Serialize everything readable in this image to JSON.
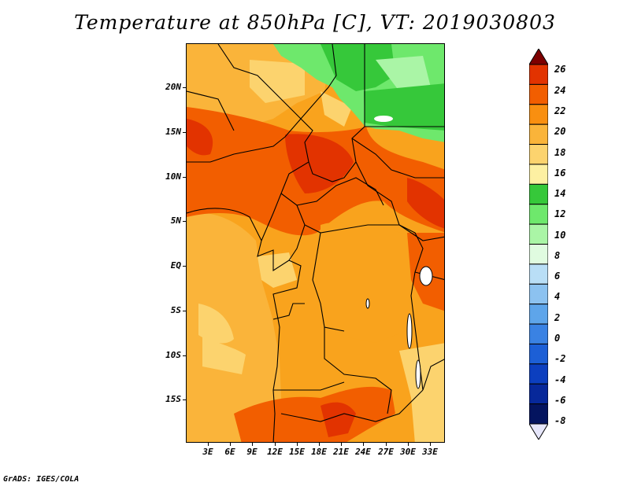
{
  "title": "Temperature at 850hPa [C], VT: 2019030803",
  "credit": "GrADS: IGES/COLA",
  "map": {
    "lat_labels": [
      "20N",
      "15N",
      "10N",
      "5N",
      "EQ",
      "5S",
      "10S",
      "15S"
    ],
    "lon_labels": [
      "3E",
      "6E",
      "9E",
      "12E",
      "15E",
      "18E",
      "21E",
      "24E",
      "27E",
      "30E",
      "33E"
    ]
  },
  "colorbar": {
    "labels": [
      "26",
      "24",
      "22",
      "20",
      "18",
      "16",
      "14",
      "12",
      "10",
      "8",
      "6",
      "4",
      "2",
      "0",
      "-2",
      "-4",
      "-6",
      "-8"
    ],
    "colors": [
      "#7d0000",
      "#e23300",
      "#f25e00",
      "#f98f10",
      "#fab43a",
      "#fcd36e",
      "#fdf0a2",
      "#36c83a",
      "#6ee86c",
      "#aaf5a6",
      "#e0fbe0",
      "#b9def6",
      "#8cc2f0",
      "#5ea5ea",
      "#3a82e3",
      "#1c5fd6",
      "#0c3fbf",
      "#07289a",
      "#04145f",
      "#e6e6fa"
    ]
  }
}
